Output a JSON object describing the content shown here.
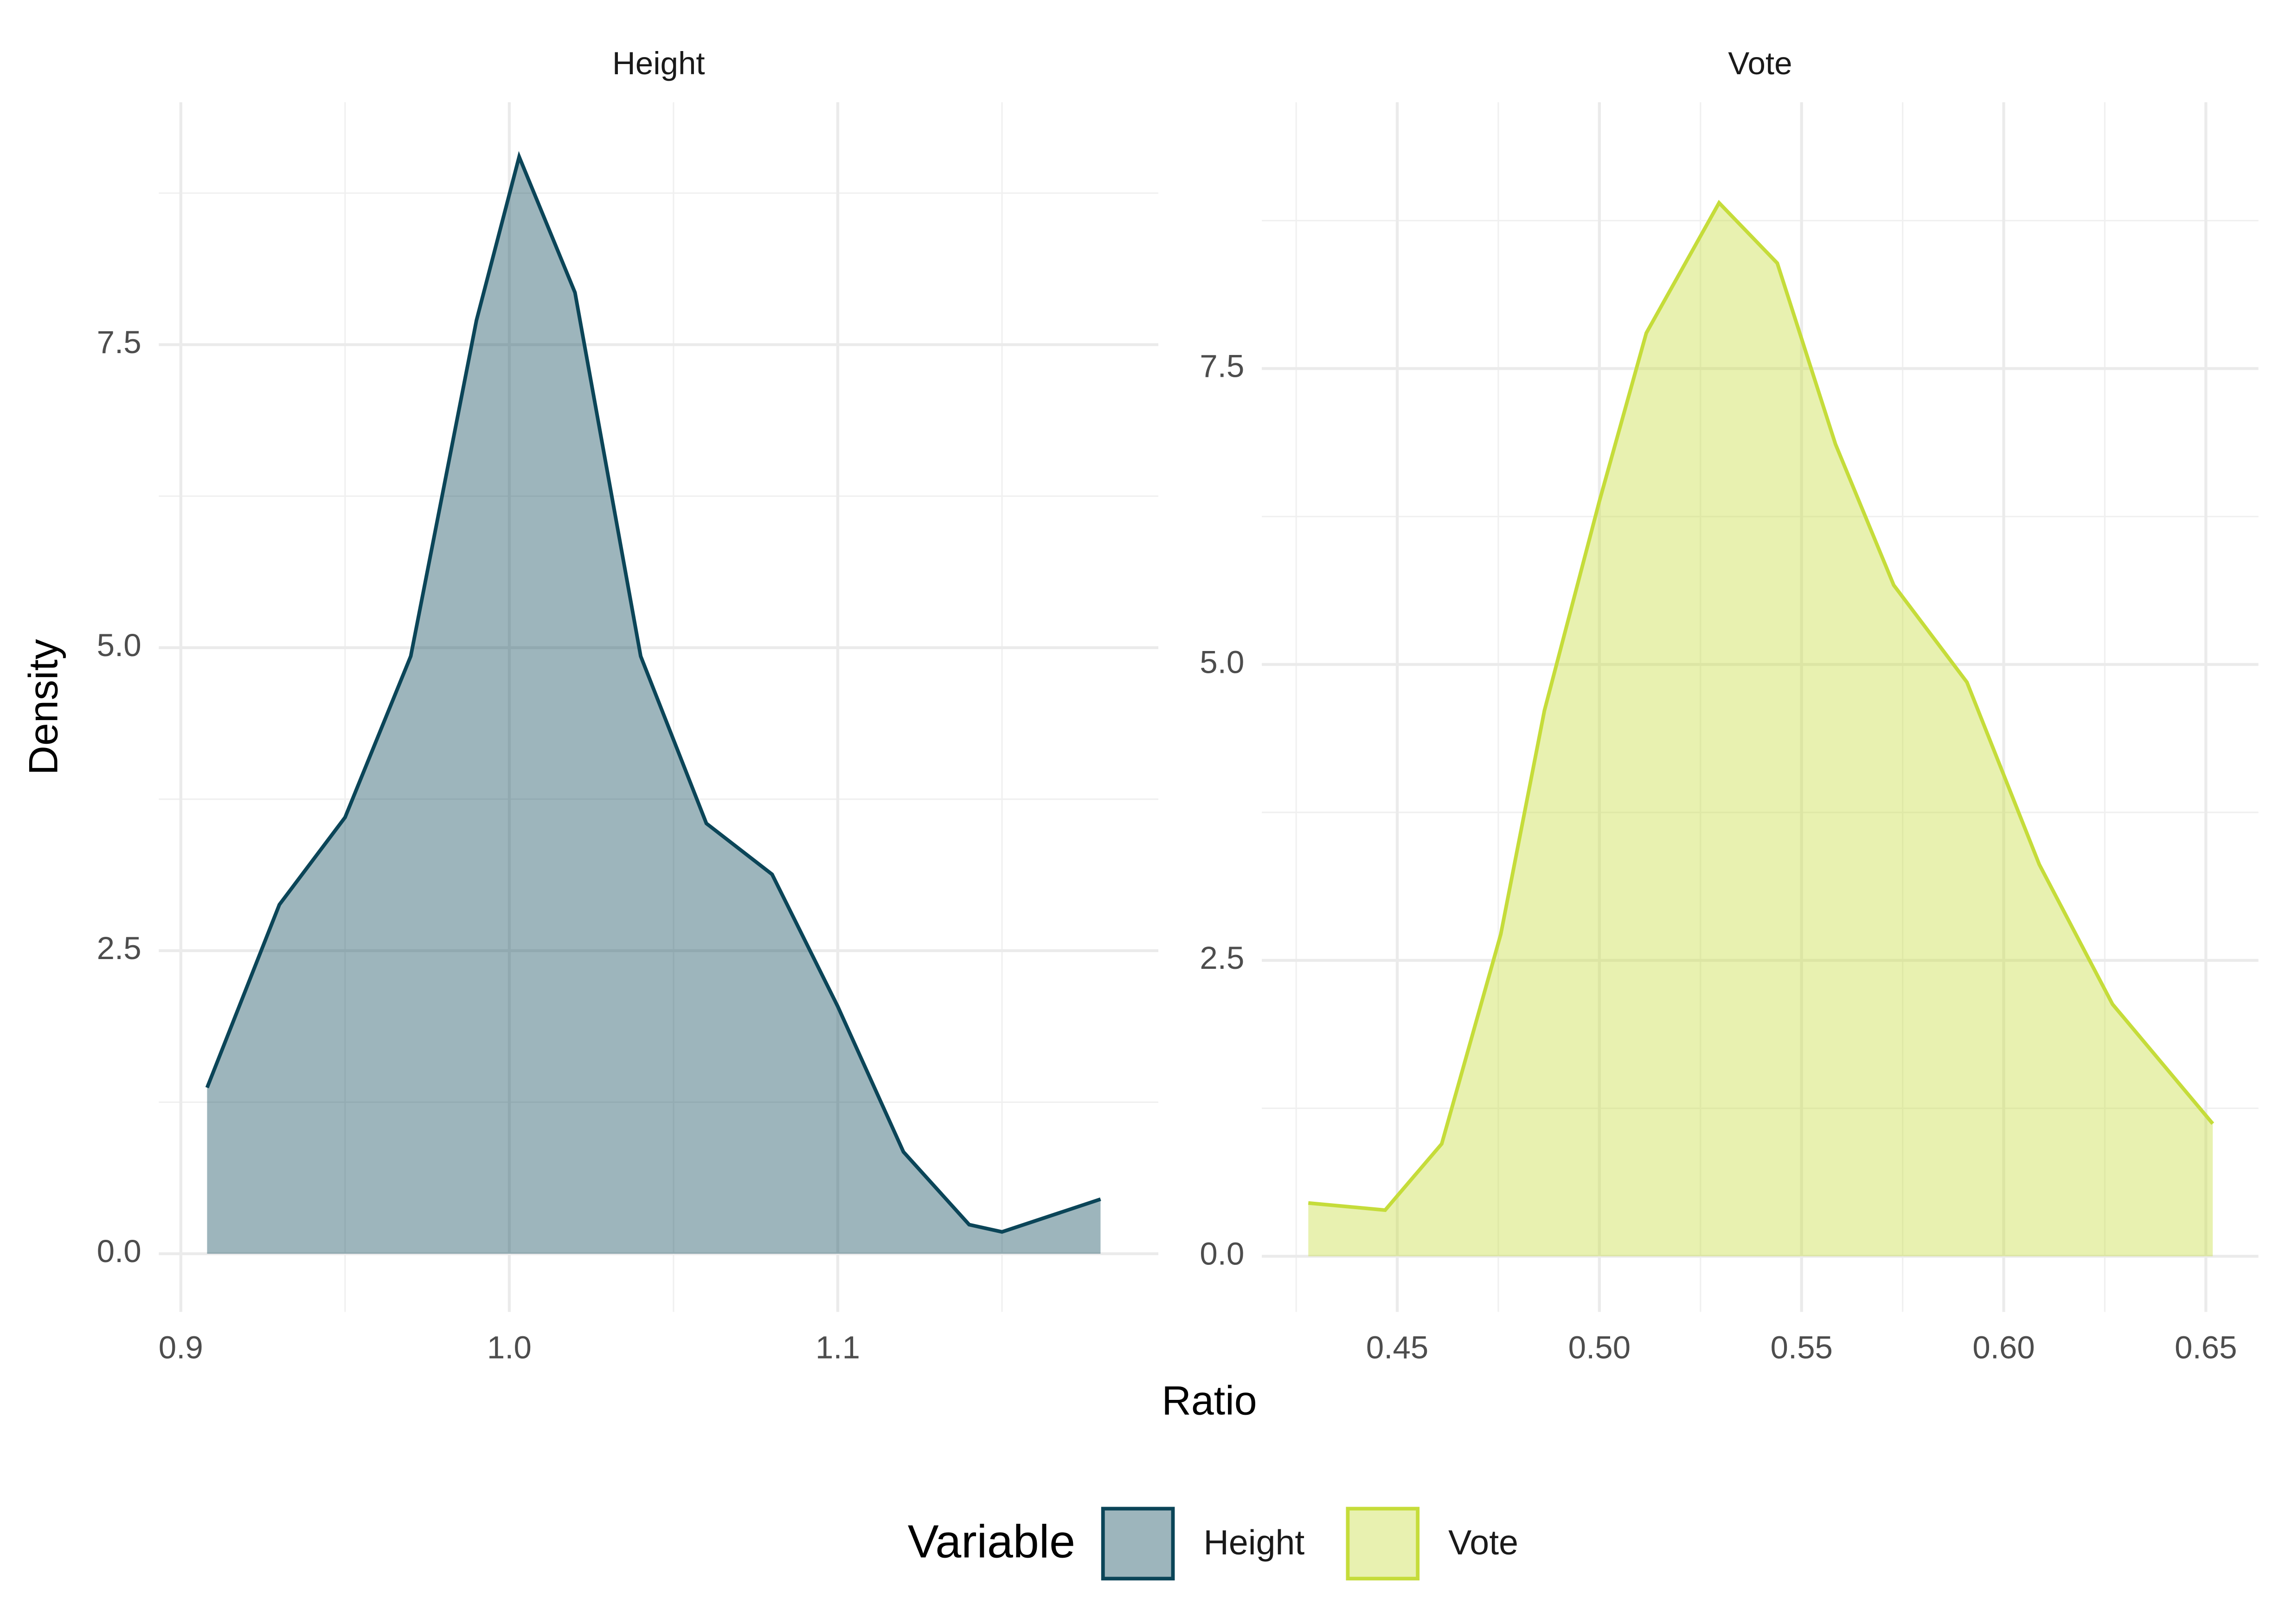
{
  "chart_data": [
    {
      "type": "density",
      "name": "Height",
      "color": "#0b4558",
      "fill_opacity": 0.4,
      "x": [
        0.908,
        0.93,
        0.95,
        0.97,
        0.99,
        1.003,
        1.02,
        1.04,
        1.06,
        1.08,
        1.1,
        1.12,
        1.14,
        1.15,
        1.17,
        1.18
      ],
      "values": [
        1.37,
        2.88,
        3.6,
        4.93,
        7.7,
        9.05,
        7.93,
        4.93,
        3.55,
        3.13,
        2.04,
        0.84,
        0.24,
        0.18,
        0.36,
        0.45
      ],
      "xlim": [
        0.8933,
        1.1976
      ],
      "ylim": [
        -0.48,
        9.5
      ],
      "xticks": [
        0.9,
        {
          "value": 1,
          "label": "1.0"
        },
        1.1
      ],
      "yticks": [
        {
          "value": 0,
          "label": "0.0"
        },
        2.5,
        {
          "value": 5,
          "label": "5.0"
        },
        7.5
      ],
      "grid": true
    },
    {
      "type": "density",
      "name": "Vote",
      "color": "#c5dc3a",
      "fill_opacity": 0.4,
      "x": [
        0.428,
        0.447,
        0.461,
        0.4756,
        0.4864,
        0.5,
        0.5116,
        0.5296,
        0.544,
        0.5584,
        0.5728,
        0.5909,
        0.6088,
        0.6269,
        0.6517
      ],
      "values": [
        0.45,
        0.39,
        0.95,
        2.72,
        4.61,
        6.38,
        7.8,
        8.9,
        8.39,
        6.86,
        5.67,
        4.85,
        3.31,
        2.13,
        1.12
      ],
      "xlim": [
        0.4165,
        0.663
      ],
      "ylim": [
        -0.47,
        9.75
      ],
      "xticks": [
        0.45,
        {
          "value": 0.5,
          "label": "0.50"
        },
        0.55,
        {
          "value": 0.6,
          "label": "0.60"
        },
        0.65
      ],
      "yticks": [
        {
          "value": 0,
          "label": "0.0"
        },
        2.5,
        {
          "value": 5,
          "label": "5.0"
        },
        7.5
      ],
      "grid": true
    }
  ],
  "x_label": "Ratio",
  "y_label": "Density",
  "legend_title": "Variable"
}
